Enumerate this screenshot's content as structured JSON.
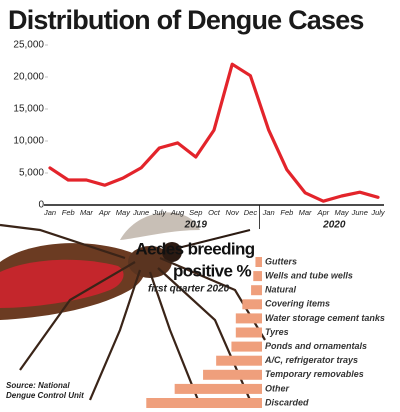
{
  "chart_data": [
    {
      "type": "line",
      "title": "Distribution of Dengue Cases",
      "categories": [
        "Jan",
        "Feb",
        "Mar",
        "Apr",
        "May",
        "June",
        "July",
        "Aug",
        "Sep",
        "Oct",
        "Nov",
        "Dec",
        "Jan",
        "Feb",
        "Mar",
        "Apr",
        "May",
        "June",
        "July"
      ],
      "values": [
        5800,
        3900,
        3900,
        3100,
        4200,
        5800,
        8900,
        9700,
        7500,
        11700,
        22000,
        20200,
        11700,
        5500,
        1900,
        600,
        1400,
        2000,
        1200
      ],
      "color": "#e3242b",
      "annotations": [
        "2019",
        "2020"
      ],
      "ylim": [
        0,
        25000
      ],
      "yticks": [
        0,
        {
          "value": 5000,
          "label": "5,000"
        },
        {
          "value": 10000,
          "label": "10,000"
        },
        {
          "value": 15000,
          "label": "15,000"
        },
        {
          "value": 20000,
          "label": "20,000"
        },
        {
          "value": 25000,
          "label": "25,000"
        }
      ],
      "source": [
        "Source: National",
        "Dengue Control Unit"
      ]
    },
    {
      "type": "hbar",
      "title": [
        "Aedes breeding",
        "positive %"
      ],
      "subtitle": "first quarter 2020",
      "categories": [
        "Gutters",
        "Wells and tube wells",
        "Natural",
        "Covering items",
        "Water storage cement tanks",
        "Tyres",
        "Ponds and ornamentals",
        "A/C, refrigerator trays",
        "Temporary removables",
        "Other",
        "Discarded"
      ],
      "values": [
        1.5,
        2,
        2.5,
        4.5,
        6,
        6,
        7,
        10.5,
        13.5,
        20,
        26.5
      ],
      "color": "#ef9f7c",
      "xlim": [
        0,
        30
      ]
    }
  ]
}
